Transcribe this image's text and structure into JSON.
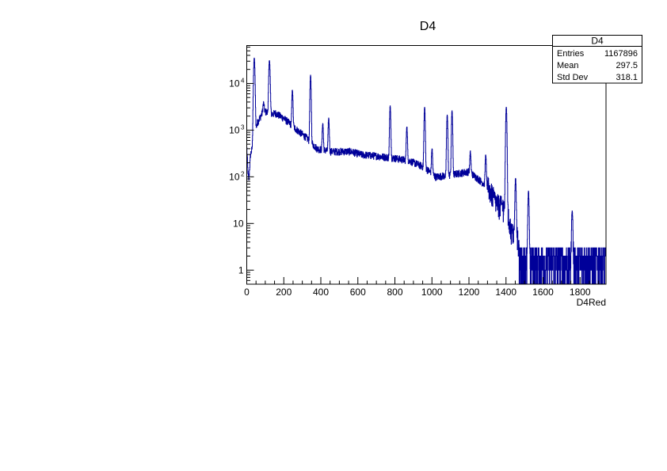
{
  "chart_data": {
    "type": "line",
    "title": "D4",
    "xlabel": "D4Red",
    "ylabel": "",
    "xlim": [
      0,
      1940
    ],
    "ylim": [
      0.5,
      65000
    ],
    "yscale": "log",
    "grid": false,
    "line_color": "#000099",
    "x_ticks": [
      "0",
      "200",
      "400",
      "600",
      "800",
      "1000",
      "1200",
      "1400",
      "1600",
      "1800"
    ],
    "y_ticks": [
      {
        "value": 1,
        "label": "1"
      },
      {
        "value": 10,
        "label": "10"
      },
      {
        "value": 100,
        "label": "10",
        "exp": "2"
      },
      {
        "value": 1000,
        "label": "10",
        "exp": "3"
      },
      {
        "value": 10000,
        "label": "10",
        "exp": "4"
      }
    ],
    "continuum": {
      "x": [
        0,
        5,
        10,
        20,
        35,
        55,
        90,
        130,
        155,
        200,
        260,
        320,
        380,
        450,
        560,
        620,
        700,
        800,
        880,
        960,
        1020,
        1100,
        1150,
        1200,
        1250,
        1300,
        1350,
        1400,
        1430,
        1460,
        1480,
        1940
      ],
      "y": [
        400,
        150,
        80,
        300,
        500,
        1400,
        2600,
        2200,
        2300,
        1800,
        1100,
        700,
        400,
        350,
        350,
        300,
        280,
        250,
        220,
        160,
        100,
        110,
        120,
        130,
        90,
        60,
        25,
        20,
        6,
        5,
        1.5,
        1.5
      ]
    },
    "peaks": [
      {
        "x": 40,
        "y": 35000
      },
      {
        "x": 90,
        "y": 3800
      },
      {
        "x": 122,
        "y": 31000
      },
      {
        "x": 246,
        "y": 7300
      },
      {
        "x": 344,
        "y": 15000
      },
      {
        "x": 410,
        "y": 1400
      },
      {
        "x": 442,
        "y": 1800
      },
      {
        "x": 774,
        "y": 3300
      },
      {
        "x": 864,
        "y": 1200
      },
      {
        "x": 960,
        "y": 3100
      },
      {
        "x": 1000,
        "y": 400
      },
      {
        "x": 1082,
        "y": 2100
      },
      {
        "x": 1108,
        "y": 2600
      },
      {
        "x": 1207,
        "y": 340
      },
      {
        "x": 1290,
        "y": 300
      },
      {
        "x": 1401,
        "y": 3100
      },
      {
        "x": 1451,
        "y": 93
      },
      {
        "x": 1521,
        "y": 48
      },
      {
        "x": 1757,
        "y": 20
      }
    ],
    "stats_box": {
      "title": "D4",
      "rows": [
        {
          "label": "Entries",
          "value": "1167896"
        },
        {
          "label": "Mean",
          "value": "297.5"
        },
        {
          "label": "Std Dev",
          "value": "318.1"
        }
      ]
    }
  }
}
